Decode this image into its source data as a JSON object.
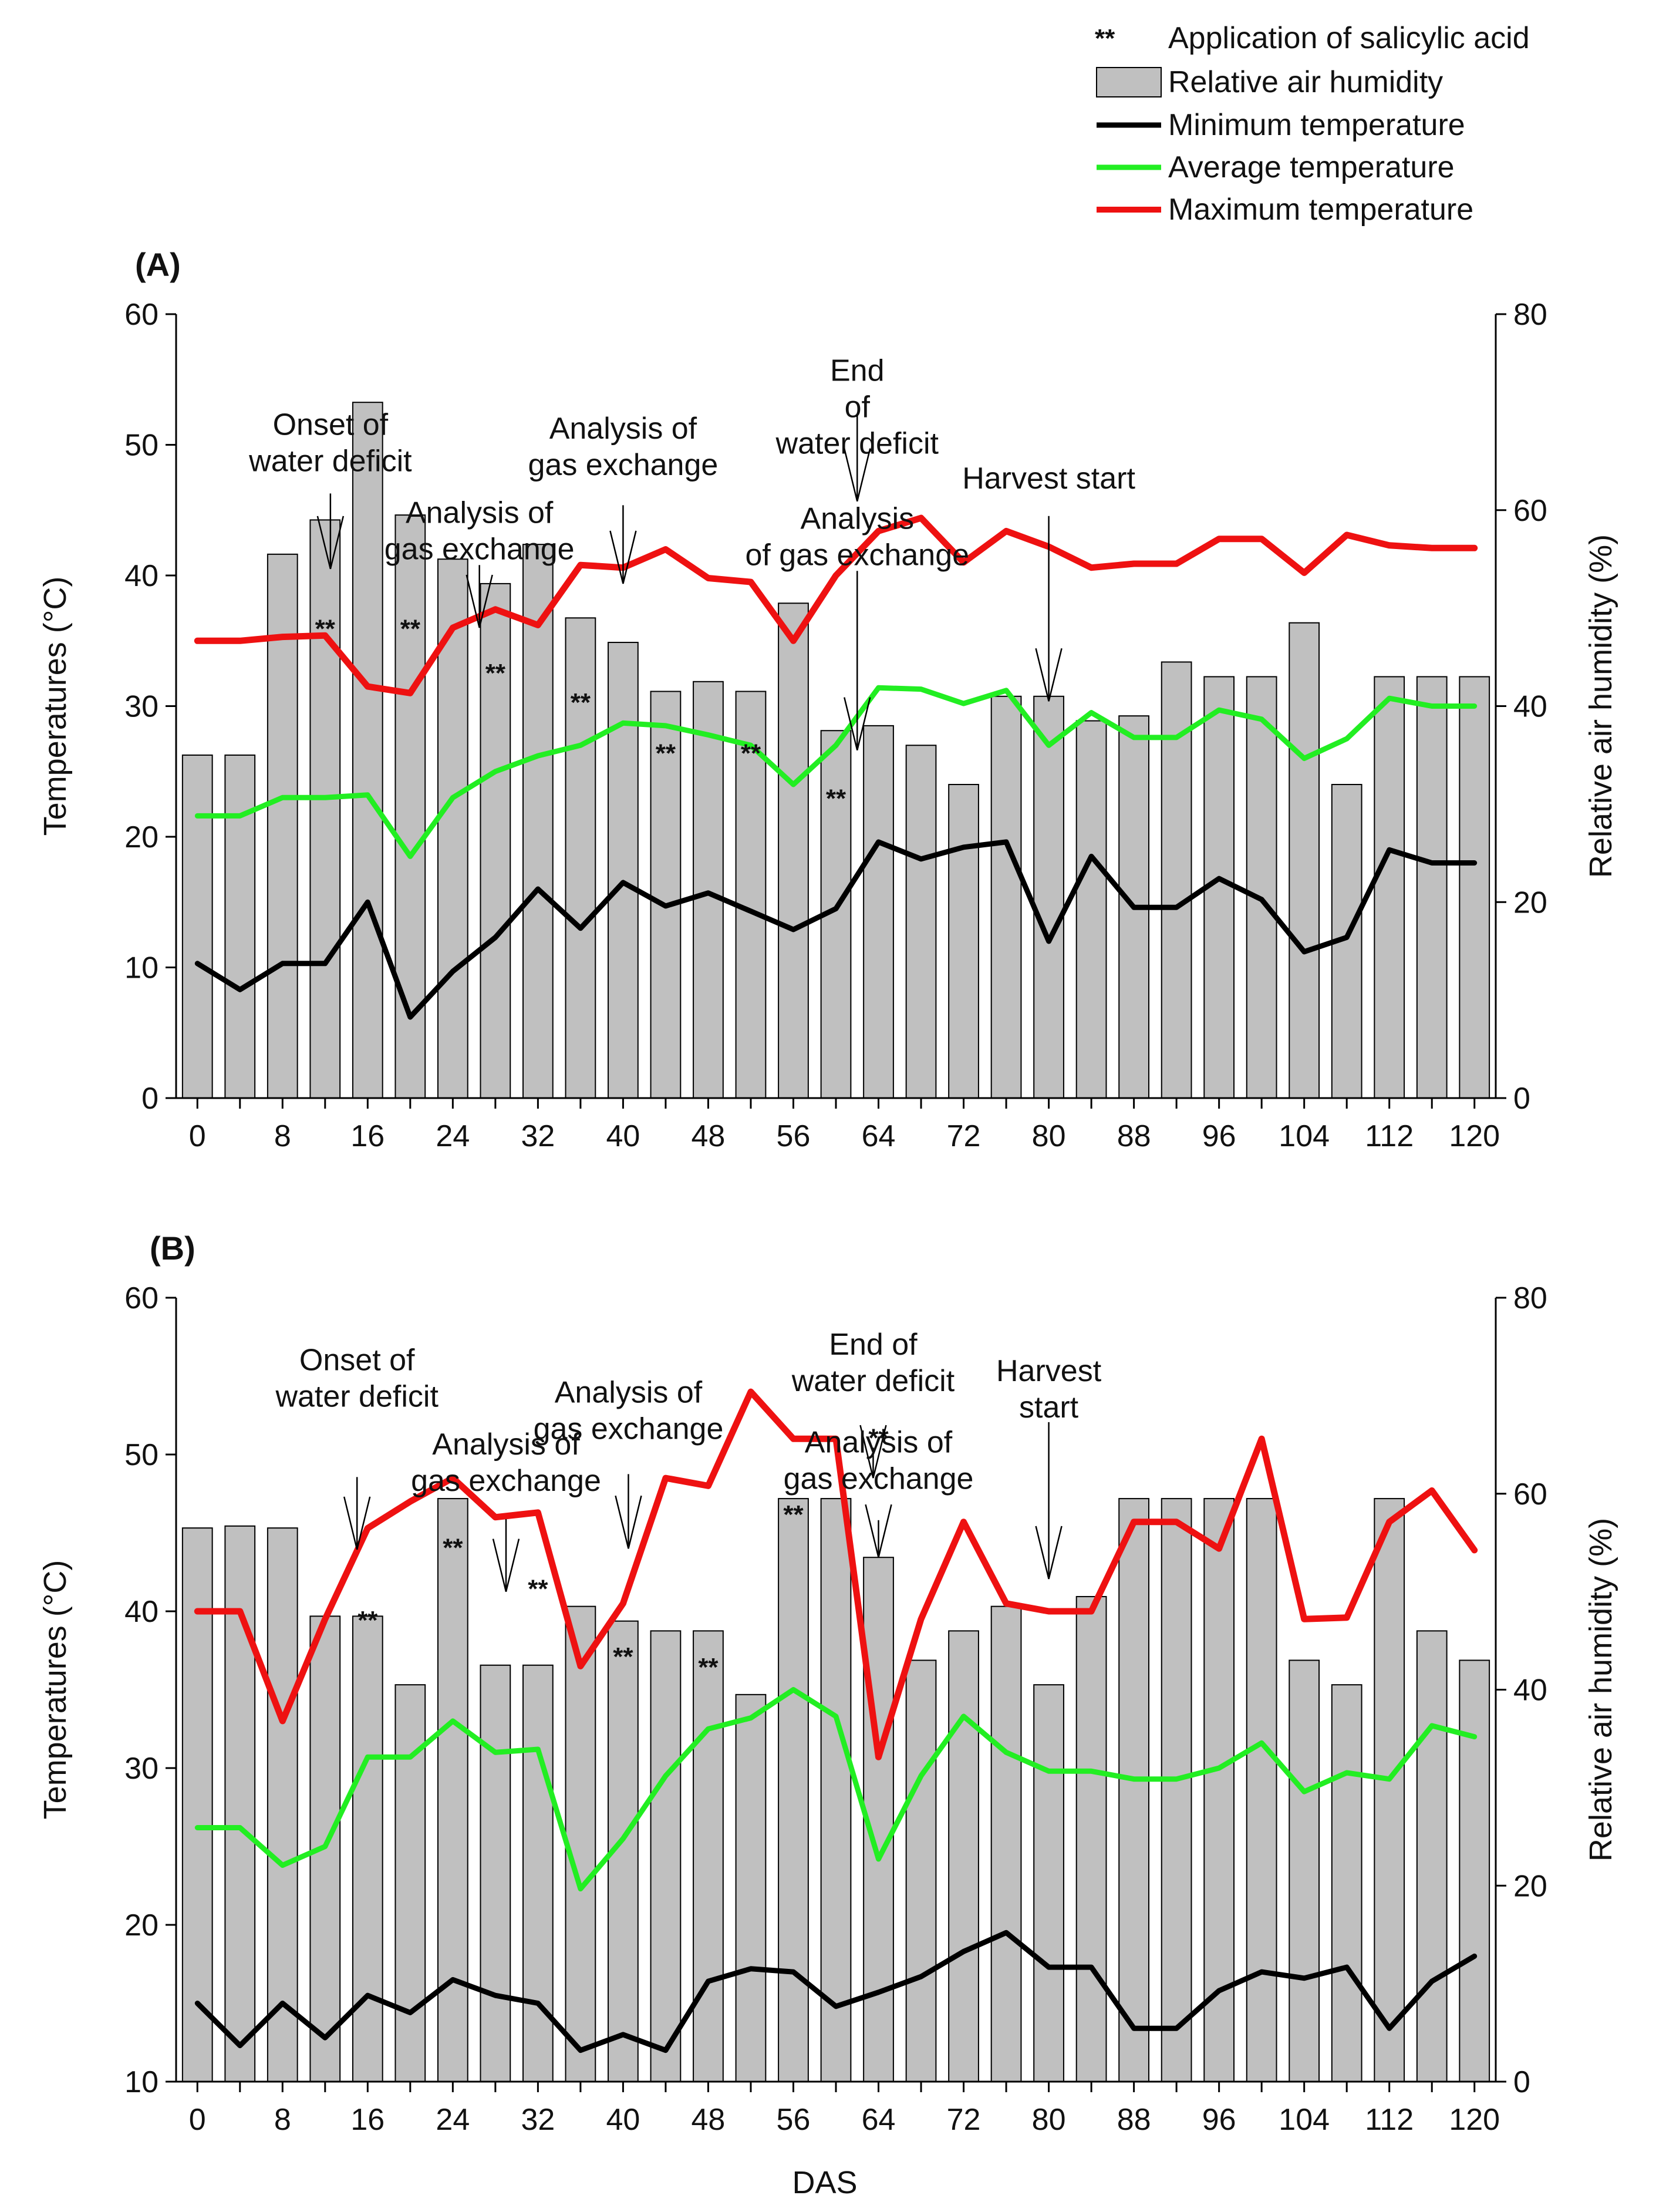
{
  "legend": {
    "items": [
      {
        "key": "salicylic",
        "symbol": "**",
        "label": "Application of salicylic acid"
      },
      {
        "key": "humidity",
        "label": "Relative air humidity"
      },
      {
        "key": "min",
        "label": "Minimum temperature"
      },
      {
        "key": "avg",
        "label": "Average temperature"
      },
      {
        "key": "max",
        "label": "Maximum temperature"
      }
    ]
  },
  "colors": {
    "bar_fill": "#c0c0c0",
    "bar_stroke": "#000000",
    "min": "#000000",
    "avg": "#22ee22",
    "max": "#ee1111"
  },
  "x_axis_title": "DAS",
  "chart_data": [
    {
      "panel_label": "(A)",
      "type": "bar+line",
      "xlabel": "DAS",
      "ylabel_left": "Temperatures (°C)",
      "ylabel_right": "Relative air humidity (%)",
      "xlim": [
        -2,
        122
      ],
      "ylim_left": [
        0,
        60
      ],
      "ylim_right": [
        0,
        80
      ],
      "left_ticks": [
        0,
        10,
        20,
        30,
        40,
        50,
        60
      ],
      "right_ticks": [
        0,
        20,
        40,
        60,
        80
      ],
      "x_ticks": [
        0,
        8,
        16,
        24,
        32,
        40,
        48,
        56,
        64,
        72,
        80,
        88,
        96,
        104,
        112,
        120
      ],
      "x": [
        0,
        4,
        8,
        12,
        16,
        20,
        24,
        28,
        32,
        36,
        40,
        44,
        48,
        52,
        56,
        60,
        64,
        68,
        72,
        76,
        80,
        84,
        88,
        92,
        96,
        100,
        104,
        108,
        112,
        116,
        120
      ],
      "series": [
        {
          "name": "Relative air humidity",
          "axis": "right",
          "kind": "bar",
          "values": [
            35,
            35,
            55.5,
            59,
            71,
            59.5,
            55,
            52.5,
            56.5,
            49,
            46.5,
            41.5,
            42.5,
            41.5,
            50.5,
            37.5,
            38,
            36,
            32,
            41,
            41,
            38.5,
            39,
            44.5,
            43,
            43,
            48.5,
            32,
            43,
            43,
            43
          ]
        },
        {
          "name": "Minimum temperature",
          "axis": "left",
          "kind": "line",
          "color_key": "min",
          "values": [
            10.3,
            8.3,
            10.3,
            10.3,
            15,
            6.2,
            9.7,
            12.3,
            16,
            13,
            16.5,
            14.7,
            15.7,
            14.3,
            12.9,
            14.5,
            19.6,
            18.3,
            19.2,
            19.6,
            12,
            18.5,
            14.6,
            14.6,
            16.8,
            15.2,
            11.2,
            12.3,
            19,
            18,
            18
          ]
        },
        {
          "name": "Average temperature",
          "axis": "left",
          "kind": "line",
          "color_key": "avg",
          "values": [
            21.6,
            21.6,
            23,
            23,
            23.2,
            18.5,
            23,
            25,
            26.2,
            27,
            28.7,
            28.5,
            27.8,
            27,
            24,
            27,
            31.4,
            31.3,
            30.2,
            31.2,
            27,
            29.5,
            27.6,
            27.6,
            29.7,
            29,
            26,
            27.5,
            30.6,
            30,
            30
          ]
        },
        {
          "name": "Maximum temperature",
          "axis": "left",
          "kind": "line",
          "color_key": "max",
          "values": [
            35,
            35,
            35.3,
            35.4,
            31.5,
            31,
            36,
            37.4,
            36.2,
            40.8,
            40.6,
            42,
            39.8,
            39.5,
            35,
            40,
            43.4,
            44.4,
            41,
            43.4,
            42.2,
            40.6,
            40.9,
            40.9,
            42.8,
            42.8,
            40.2,
            43.1,
            42.3,
            42.1,
            42.1
          ]
        }
      ],
      "salicylic_marks": [
        {
          "label": "**",
          "x": 12,
          "y": 47
        },
        {
          "label": "**",
          "x": 20,
          "y": 47
        },
        {
          "label": "**",
          "x": 28,
          "y": 42.5
        },
        {
          "label": "**",
          "x": 36,
          "y": 39.5
        },
        {
          "label": "**",
          "x": 44,
          "y": 34.3
        },
        {
          "label": "**",
          "x": 52,
          "y": 34.3
        },
        {
          "label": "**",
          "x": 60,
          "y": 29.7
        }
      ],
      "annotations": [
        {
          "lines": [
            "Onset of",
            "water deficit"
          ],
          "x": 12.5,
          "label_y": 67.7,
          "arrow_from": 61.7,
          "arrow_to": 54
        },
        {
          "lines": [
            "Analysis of",
            "gas exchange"
          ],
          "x": 26.5,
          "label_y": 58.7,
          "arrow_from": 54.4,
          "arrow_to": 48
        },
        {
          "lines": [
            "Analysis of",
            "gas exchange"
          ],
          "x": 40,
          "label_y": 67.3,
          "arrow_from": 60.5,
          "arrow_to": 52.5
        },
        {
          "lines": [
            "End",
            "of",
            "water deficit"
          ],
          "x": 62,
          "label_y": 73.2,
          "arrow_from": 69.7,
          "arrow_to": 60.9
        },
        {
          "lines": [
            "Analysis",
            "of gas exchange"
          ],
          "x": 62,
          "label_y": 58.1,
          "arrow_from": 53.8,
          "arrow_to": 35.5
        },
        {
          "lines": [
            "Harvest start"
          ],
          "x": 80,
          "label_y": 62.2,
          "arrow_from": 59.4,
          "arrow_to": 40.5
        }
      ]
    },
    {
      "panel_label": "(B)",
      "type": "bar+line",
      "xlabel": "DAS",
      "ylabel_left": "Temperatures (°C)",
      "ylabel_right": "Relative air humidity (%)",
      "xlim": [
        -2,
        122
      ],
      "ylim_left": [
        10,
        60
      ],
      "ylim_right": [
        0,
        80
      ],
      "left_ticks": [
        10,
        20,
        30,
        40,
        50,
        60
      ],
      "right_ticks": [
        0,
        20,
        40,
        60,
        80
      ],
      "x_ticks": [
        0,
        8,
        16,
        24,
        32,
        40,
        48,
        56,
        64,
        72,
        80,
        88,
        96,
        104,
        112,
        120
      ],
      "x": [
        0,
        4,
        8,
        12,
        16,
        20,
        24,
        28,
        32,
        36,
        40,
        44,
        48,
        52,
        56,
        60,
        64,
        68,
        72,
        76,
        80,
        84,
        88,
        92,
        96,
        100,
        104,
        108,
        112,
        116,
        120
      ],
      "series": [
        {
          "name": "Relative air humidity",
          "axis": "right",
          "kind": "bar",
          "values": [
            56.5,
            56.7,
            56.5,
            47.5,
            47.5,
            40.5,
            59.5,
            42.5,
            42.5,
            48.5,
            47,
            46,
            46,
            39.5,
            59.5,
            59.5,
            53.5,
            43,
            46,
            48.5,
            40.5,
            49.5,
            59.5,
            59.5,
            59.5,
            59.5,
            43,
            40.5,
            59.5,
            46,
            43
          ]
        },
        {
          "name": "Minimum temperature",
          "axis": "left",
          "kind": "line",
          "color_key": "min",
          "values": [
            15,
            12.3,
            15,
            12.8,
            15.5,
            14.4,
            16.5,
            15.5,
            15,
            12,
            13,
            12,
            16.4,
            17.2,
            17,
            14.8,
            15.7,
            16.7,
            18.3,
            19.5,
            17.3,
            17.3,
            13.4,
            13.4,
            15.8,
            17,
            16.6,
            17.3,
            13.4,
            16.4,
            18
          ]
        },
        {
          "name": "Average temperature",
          "axis": "left",
          "kind": "line",
          "color_key": "avg",
          "values": [
            26.2,
            26.2,
            23.8,
            25,
            30.7,
            30.7,
            33,
            31,
            31.2,
            22.3,
            25.5,
            29.5,
            32.5,
            33.2,
            35,
            33.3,
            24.2,
            29.5,
            33.3,
            31,
            29.8,
            29.8,
            29.3,
            29.3,
            30,
            31.6,
            28.5,
            29.7,
            29.3,
            32.7,
            32
          ]
        },
        {
          "name": "Maximum temperature",
          "axis": "left",
          "kind": "line",
          "color_key": "max",
          "values": [
            40,
            40,
            33,
            39.5,
            45.3,
            47,
            48.5,
            46,
            46.3,
            36.5,
            40.5,
            48.5,
            48,
            54,
            51,
            51,
            30.7,
            39.5,
            45.7,
            40.5,
            40,
            40,
            45.7,
            45.7,
            44,
            51,
            39.5,
            39.6,
            45.7,
            47.7,
            43.9
          ]
        }
      ],
      "salicylic_marks": [
        {
          "label": "**",
          "x": 16,
          "y": 46.2
        },
        {
          "label": "**",
          "x": 24,
          "y": 53.6
        },
        {
          "label": "**",
          "x": 32,
          "y": 49.4
        },
        {
          "label": "**",
          "x": 40,
          "y": 42.5
        },
        {
          "label": "**",
          "x": 48,
          "y": 41.4
        },
        {
          "label": "**",
          "x": 56,
          "y": 57
        },
        {
          "label": "**",
          "x": 64,
          "y": 64.8
        }
      ],
      "annotations": [
        {
          "lines": [
            "Onset of",
            "water deficit"
          ],
          "x": 15,
          "label_y": 72.6,
          "arrow_from": 61.7,
          "arrow_to": 54.3
        },
        {
          "lines": [
            "Analysis of",
            "gas exchange"
          ],
          "x": 29,
          "label_y": 64,
          "arrow_from": 57.4,
          "arrow_to": 50
        },
        {
          "lines": [
            "Analysis of",
            "gas exchange"
          ],
          "x": 40.5,
          "label_y": 69.3,
          "arrow_from": 62,
          "arrow_to": 54.4
        },
        {
          "lines": [
            "End of",
            "water deficit"
          ],
          "x": 63.5,
          "label_y": 74.2,
          "arrow_from": 64.7,
          "arrow_to": 61.6
        },
        {
          "lines": [
            "Analysis of",
            "gas exchange"
          ],
          "x": 64,
          "label_y": 64.2,
          "arrow_from": 57.3,
          "arrow_to": 53.5
        },
        {
          "lines": [
            "Harvest",
            "start"
          ],
          "x": 80,
          "label_y": 71.5,
          "arrow_from": 67.3,
          "arrow_to": 51.3
        }
      ]
    }
  ]
}
